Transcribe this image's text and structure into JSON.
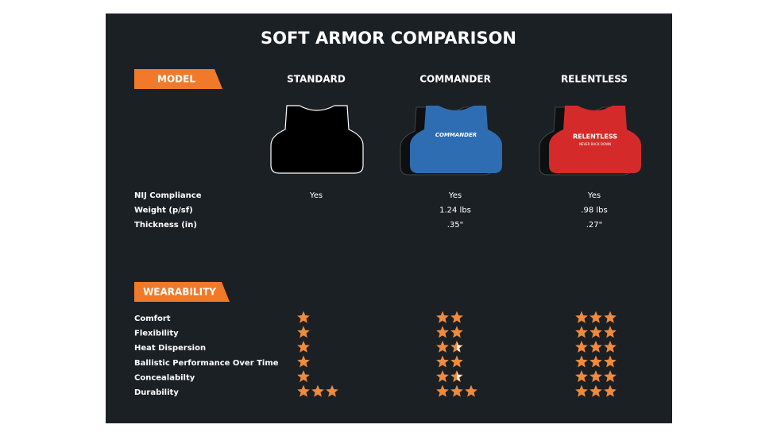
{
  "header": {
    "title": "SOFT ARMOR COMPARISON"
  },
  "model": {
    "tag": "MODEL",
    "columns": [
      "STANDARD",
      "COMMANDER",
      "RELENTLESS"
    ],
    "vest_text": {
      "commander": "COMMANDER",
      "relentless": "RELENTLESS",
      "relentless_sub": "NEVER BACK DOWN"
    }
  },
  "specs": {
    "rows": [
      {
        "label": "NIJ Compliance",
        "values": [
          "Yes",
          "Yes",
          "Yes"
        ]
      },
      {
        "label": "Weight (p/sf)",
        "values": [
          null,
          "1.24 lbs",
          ".98 lbs"
        ]
      },
      {
        "label": "Thickness (in)",
        "values": [
          null,
          ".35\"",
          ".27\""
        ]
      }
    ]
  },
  "wearability": {
    "tag": "WEARABILITY",
    "rows": [
      {
        "label": "Comfort",
        "ratings": [
          1,
          2,
          3
        ]
      },
      {
        "label": "Flexibility",
        "ratings": [
          1,
          2,
          3
        ]
      },
      {
        "label": "Heat Dispersion",
        "ratings": [
          1,
          1.5,
          3
        ]
      },
      {
        "label": "Ballistic Performance Over Time",
        "ratings": [
          1,
          2,
          3
        ]
      },
      {
        "label": "Concealabilty",
        "ratings": [
          1,
          1.5,
          3
        ]
      },
      {
        "label": "Durability",
        "ratings": [
          3,
          3,
          3
        ]
      }
    ]
  }
}
